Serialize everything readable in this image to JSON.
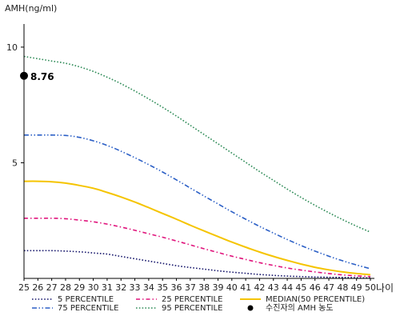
{
  "chart_data": {
    "type": "line",
    "ylabel": "AMH(ng/ml)",
    "xlabel": "나이",
    "x": [
      25,
      26,
      27,
      28,
      29,
      30,
      31,
      32,
      33,
      34,
      35,
      36,
      37,
      38,
      39,
      40,
      41,
      42,
      43,
      44,
      45,
      46,
      47,
      48,
      49,
      50
    ],
    "xlim": [
      25,
      50
    ],
    "ylim": [
      0,
      11
    ],
    "yticks": [
      5,
      10
    ],
    "series": [
      {
        "name": "5 PERCENTILE",
        "color": "#1a1a6e",
        "dash": "dotted",
        "values": [
          1.2,
          1.2,
          1.2,
          1.18,
          1.15,
          1.1,
          1.05,
          0.95,
          0.85,
          0.75,
          0.65,
          0.55,
          0.47,
          0.4,
          0.33,
          0.27,
          0.22,
          0.17,
          0.13,
          0.1,
          0.08,
          0.06,
          0.05,
          0.04,
          0.03,
          0.02
        ]
      },
      {
        "name": "25 PERCENTILE",
        "color": "#e0147c",
        "dash": "dashdot",
        "values": [
          2.6,
          2.6,
          2.6,
          2.58,
          2.52,
          2.45,
          2.35,
          2.22,
          2.08,
          1.93,
          1.78,
          1.62,
          1.45,
          1.28,
          1.12,
          0.96,
          0.82,
          0.68,
          0.56,
          0.45,
          0.36,
          0.28,
          0.21,
          0.15,
          0.11,
          0.08
        ]
      },
      {
        "name": "MEDIAN(50 PERCENTILE)",
        "color": "#f5c400",
        "dash": "solid",
        "values": [
          4.2,
          4.2,
          4.18,
          4.12,
          4.02,
          3.9,
          3.72,
          3.52,
          3.3,
          3.06,
          2.81,
          2.56,
          2.3,
          2.05,
          1.81,
          1.57,
          1.35,
          1.14,
          0.95,
          0.78,
          0.62,
          0.48,
          0.37,
          0.28,
          0.21,
          0.16
        ]
      },
      {
        "name": "75 PERCENTILE",
        "color": "#2b5fc6",
        "dash": "dashdotdot",
        "values": [
          6.2,
          6.2,
          6.2,
          6.18,
          6.1,
          5.95,
          5.75,
          5.5,
          5.22,
          4.92,
          4.6,
          4.26,
          3.91,
          3.56,
          3.22,
          2.88,
          2.56,
          2.25,
          1.96,
          1.68,
          1.42,
          1.18,
          0.96,
          0.76,
          0.58,
          0.42
        ]
      },
      {
        "name": "95 PERCENTILE",
        "color": "#2e8b57",
        "dash": "dotted",
        "values": [
          9.6,
          9.5,
          9.4,
          9.3,
          9.15,
          8.95,
          8.7,
          8.42,
          8.1,
          7.76,
          7.4,
          7.02,
          6.62,
          6.22,
          5.82,
          5.42,
          5.02,
          4.62,
          4.24,
          3.86,
          3.5,
          3.16,
          2.84,
          2.54,
          2.26,
          2.0
        ]
      }
    ],
    "patient_marker": {
      "label": "수진자의 AMH 농도",
      "x": 25,
      "y": 8.76,
      "value_label": "8.76",
      "color": "#000000"
    },
    "legend": [
      {
        "name": "5 PERCENTILE",
        "series_index": 0
      },
      {
        "name": "25 PERCENTILE",
        "series_index": 1
      },
      {
        "name": "MEDIAN(50 PERCENTILE)",
        "series_index": 2
      },
      {
        "name": "75 PERCENTILE",
        "series_index": 3
      },
      {
        "name": "95 PERCENTILE",
        "series_index": 4
      },
      {
        "name": "수진자의 AMH 농도",
        "marker": true
      }
    ],
    "legend_placement": "bottom",
    "grid": false
  }
}
